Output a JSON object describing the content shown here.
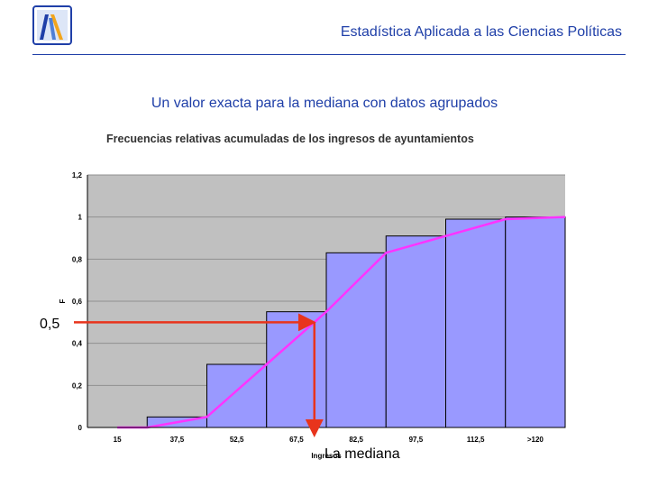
{
  "header": {
    "title": "Estadística Aplicada a las Ciencias Políticas"
  },
  "slide": {
    "subtitle": "Un valor exacta para la mediana con datos agrupados"
  },
  "annotations": {
    "half_label": "0,5",
    "median_label": "La mediana"
  },
  "colors": {
    "header_blue": "#1f3fa8",
    "bar_fill": "#9999ff",
    "plot_bg": "#c0c0c0",
    "ogive_line": "#ff33ff",
    "arrow": "#e8341c"
  },
  "chart_data": {
    "type": "bar",
    "title": "Frecuencias relativas acumuladas de los ingresos de ayuntamientos",
    "xlabel": "Ingresos",
    "ylabel": "F",
    "categories": [
      "15",
      "37,5",
      "52,5",
      "67,5",
      "82,5",
      "97,5",
      "112,5",
      ">120"
    ],
    "values": [
      0,
      0.05,
      0.3,
      0.55,
      0.83,
      0.91,
      0.99,
      1.0
    ],
    "ylim": [
      0,
      1.2
    ],
    "yticks": [
      "0",
      "0,2",
      "0,4",
      "0,6",
      "0,8",
      "1",
      "1,2"
    ],
    "grid": true,
    "ogive": {
      "name": "",
      "x_positions": [
        0.5,
        1,
        2,
        3,
        4,
        5,
        6,
        7,
        8
      ],
      "y": [
        0,
        0,
        0.05,
        0.3,
        0.55,
        0.83,
        0.91,
        0.99,
        1.0
      ]
    },
    "median_reference": {
      "y": 0.5,
      "x_position": 3.8
    }
  }
}
